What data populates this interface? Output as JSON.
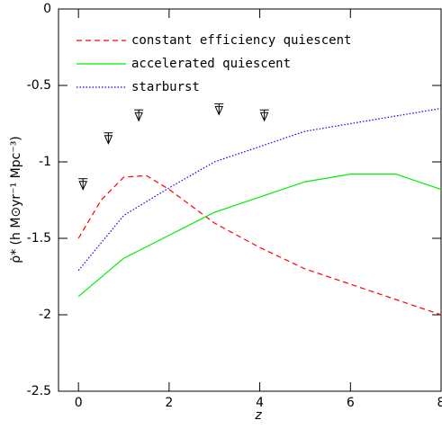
{
  "chart_data": {
    "type": "line",
    "xlabel": "z",
    "ylabel": "ρ̇* (h M⊙yr⁻¹ Mpc⁻³)",
    "xlim": [
      -0.44,
      8
    ],
    "ylim": [
      -2.5,
      0
    ],
    "xticks": [
      0,
      2,
      4,
      6,
      8
    ],
    "yticks": [
      0,
      -0.5,
      -1,
      -1.5,
      -2,
      -2.5
    ],
    "legend": "upper left",
    "series": [
      {
        "name": "constant efficiency quiescent",
        "color": "#ff0000",
        "style": "dashed",
        "x": [
          0,
          0.5,
          1,
          1.5,
          2,
          3,
          4,
          5,
          6,
          7,
          8
        ],
        "values": [
          -1.5,
          -1.25,
          -1.1,
          -1.09,
          -1.18,
          -1.4,
          -1.56,
          -1.7,
          -1.8,
          -1.9,
          -2.0
        ]
      },
      {
        "name": "accelerated quiescent",
        "color": "#00ee00",
        "style": "solid",
        "x": [
          0,
          1,
          2,
          3,
          4,
          5,
          6,
          7,
          8
        ],
        "values": [
          -1.88,
          -1.63,
          -1.48,
          -1.33,
          -1.23,
          -1.13,
          -1.08,
          -1.08,
          -1.18
        ]
      },
      {
        "name": "starburst",
        "color": "#0000ff",
        "style": "dotted",
        "x": [
          0,
          1,
          2,
          3,
          4,
          5,
          6,
          7,
          8
        ],
        "values": [
          -1.71,
          -1.35,
          -1.17,
          -1.0,
          -0.9,
          -0.8,
          -0.75,
          -0.7,
          -0.65
        ]
      }
    ],
    "upper_limits": {
      "color": "#000000",
      "x": [
        0.1,
        0.66,
        1.33,
        3.1,
        4.1
      ],
      "values": [
        -1.11,
        -0.81,
        -0.66,
        -0.62,
        -0.66
      ]
    }
  }
}
